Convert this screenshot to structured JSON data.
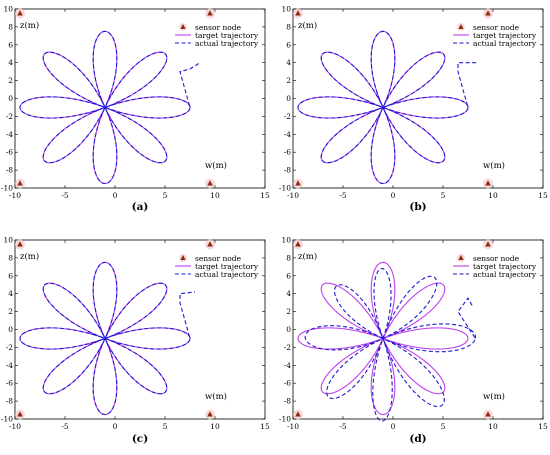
{
  "chart_data": [
    {
      "id": "a",
      "panel_label": "(a)",
      "type": "line",
      "xlabel": "w(m)",
      "ylabel": "z(m)",
      "xlim": [
        -10,
        15
      ],
      "ylim": [
        -10,
        10
      ],
      "xticks": [
        -10,
        -5,
        0,
        5,
        10,
        15
      ],
      "yticks": [
        -10,
        -8,
        -6,
        -4,
        -2,
        0,
        2,
        4,
        6,
        8,
        10
      ],
      "curve": {
        "center": [
          -1,
          -1
        ],
        "amplitude": 8.5,
        "petals": 8
      },
      "sensors": [
        [
          -9.5,
          9.5
        ],
        [
          9.5,
          9.5
        ],
        [
          -9.5,
          -9.5
        ],
        [
          9.5,
          -9.5
        ]
      ],
      "actual": {
        "tail": [
          [
            6.5,
            3
          ],
          [
            7.5,
            3.3
          ],
          [
            8.5,
            4
          ]
        ],
        "distortion": 0
      },
      "legend": [
        "sensor node",
        "target trajectory",
        "actual trajectory"
      ]
    },
    {
      "id": "b",
      "panel_label": "(b)",
      "type": "line",
      "xlabel": "w(m)",
      "ylabel": "z(m)",
      "xlim": [
        -10,
        15
      ],
      "ylim": [
        -10,
        10
      ],
      "xticks": [
        -10,
        -5,
        0,
        5,
        10,
        15
      ],
      "yticks": [
        -10,
        -8,
        -6,
        -4,
        -2,
        0,
        2,
        4,
        6,
        8,
        10
      ],
      "curve": {
        "center": [
          -1,
          -1
        ],
        "amplitude": 8.5,
        "petals": 8
      },
      "sensors": [
        [
          -9.5,
          9.5
        ],
        [
          9.5,
          9.5
        ],
        [
          -9.5,
          -9.5
        ],
        [
          9.5,
          -9.5
        ]
      ],
      "actual": {
        "tail": [
          [
            6.5,
            3
          ],
          [
            6.5,
            4
          ],
          [
            8.5,
            4
          ]
        ],
        "distortion": 0
      },
      "legend": [
        "sensor node",
        "target trajectory",
        "actual trajectory"
      ]
    },
    {
      "id": "c",
      "panel_label": "(c)",
      "type": "line",
      "xlabel": "w(m)",
      "ylabel": "z(m)",
      "xlim": [
        -10,
        15
      ],
      "ylim": [
        -10,
        10
      ],
      "xticks": [
        -10,
        -5,
        0,
        5,
        10,
        15
      ],
      "yticks": [
        -10,
        -8,
        -6,
        -4,
        -2,
        0,
        2,
        4,
        6,
        8,
        10
      ],
      "curve": {
        "center": [
          -1,
          -1
        ],
        "amplitude": 8.5,
        "petals": 8
      },
      "sensors": [
        [
          -9.5,
          9.5
        ],
        [
          9.5,
          9.5
        ],
        [
          -9.5,
          -9.5
        ],
        [
          9.5,
          -9.5
        ]
      ],
      "actual": {
        "tail": [
          [
            6.5,
            3
          ],
          [
            6.5,
            4
          ],
          [
            8,
            4.2
          ]
        ],
        "distortion": 0
      },
      "legend": [
        "sensor node",
        "target trajectory",
        "actual trajectory"
      ]
    },
    {
      "id": "d",
      "panel_label": "(d)",
      "type": "line",
      "xlabel": "w(m)",
      "ylabel": "z(m)",
      "xlim": [
        -10,
        15
      ],
      "ylim": [
        -10,
        10
      ],
      "xticks": [
        -10,
        -5,
        0,
        5,
        10,
        15
      ],
      "yticks": [
        -10,
        -8,
        -6,
        -4,
        -2,
        0,
        2,
        4,
        6,
        8,
        10
      ],
      "curve": {
        "center": [
          -1,
          -1
        ],
        "amplitude": 8.5,
        "petals": 8
      },
      "sensors": [
        [
          -9.5,
          9.5
        ],
        [
          9.5,
          9.5
        ],
        [
          -9.5,
          -9.5
        ],
        [
          9.5,
          -9.5
        ]
      ],
      "actual": {
        "tail": [
          [
            6.5,
            2
          ],
          [
            7.5,
            3.5
          ],
          [
            8,
            2.5
          ]
        ],
        "distortion": 1
      },
      "legend": [
        "sensor node",
        "target trajectory",
        "actual trajectory"
      ]
    }
  ],
  "colors": {
    "target": "#c040f0",
    "actual": "#1a1ad0",
    "sensor": "#8b2a10",
    "sensor_halo": "#f6d0d0"
  }
}
